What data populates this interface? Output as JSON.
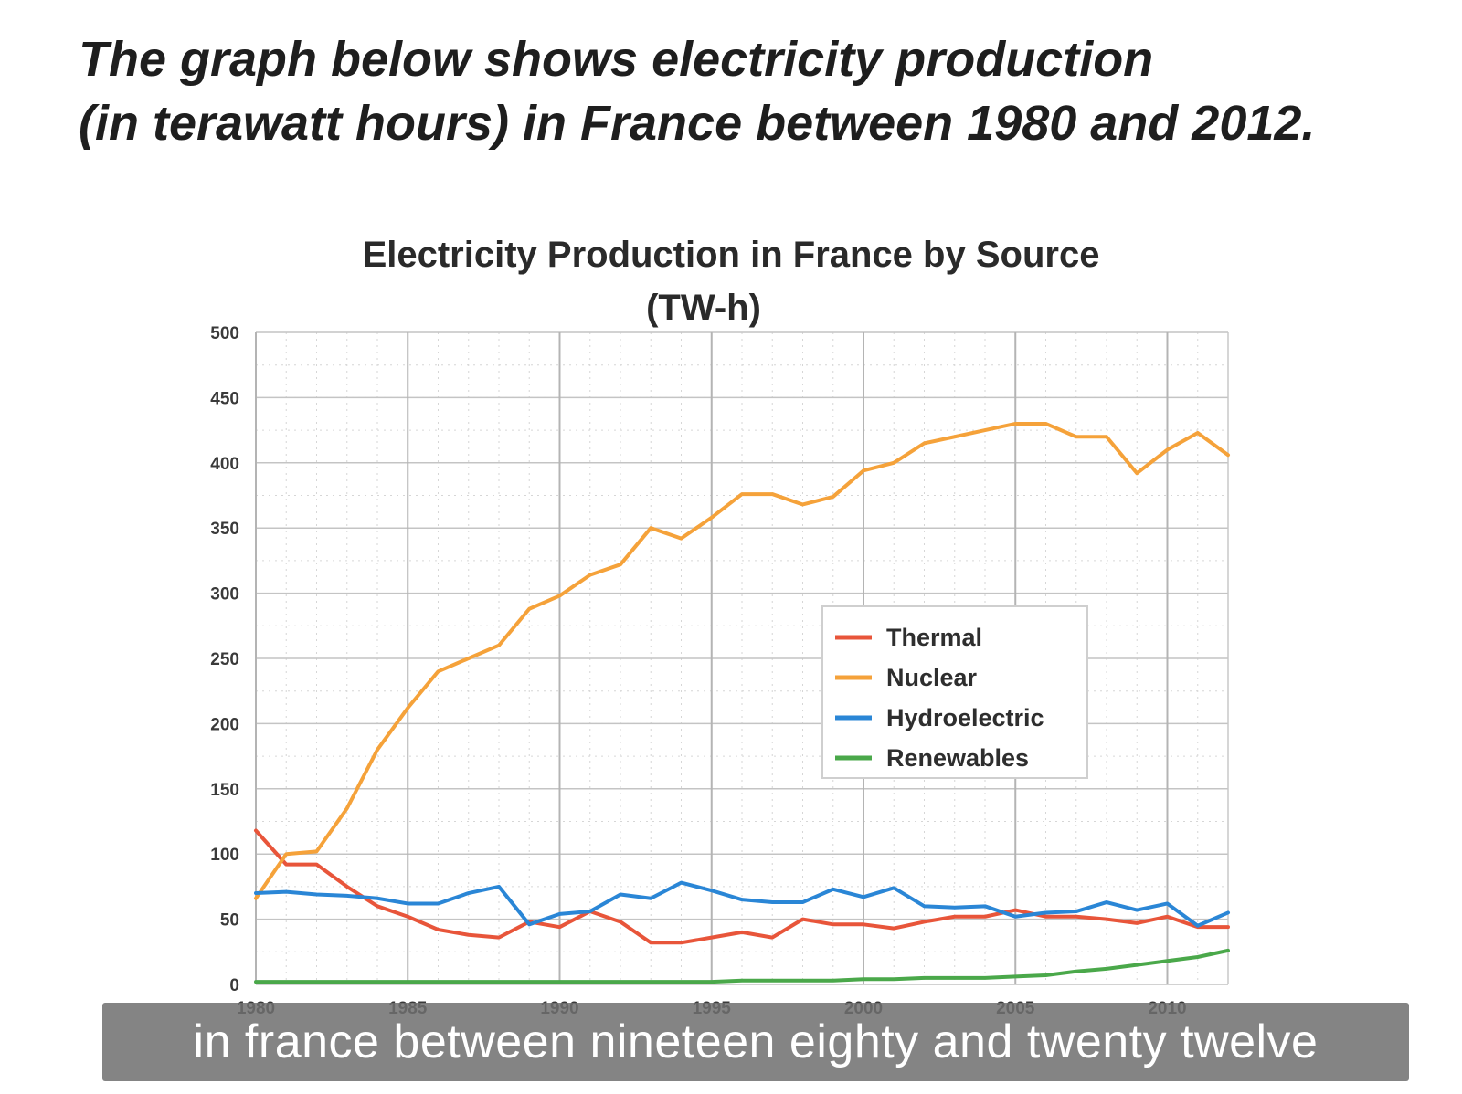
{
  "headline": {
    "line1": "The graph below shows electricity production",
    "line2": "(in terawatt hours) in France between 1980 and 2012."
  },
  "caption": "in france between nineteen eighty and twenty twelve",
  "chart_data": {
    "type": "line",
    "title": "Electricity Production in France by Source",
    "subtitle": "(TW-h)",
    "xlabel": "",
    "ylabel": "",
    "xlim": [
      1980,
      2012
    ],
    "ylim": [
      0,
      500
    ],
    "y_ticks": [
      0,
      50,
      100,
      150,
      200,
      250,
      300,
      350,
      400,
      450,
      500
    ],
    "x_ticks": [
      1980,
      1985,
      1990,
      1995,
      2000,
      2005,
      2010
    ],
    "grid": true,
    "legend_position": "center-right",
    "x": [
      1980,
      1981,
      1982,
      1983,
      1984,
      1985,
      1986,
      1987,
      1988,
      1989,
      1990,
      1991,
      1992,
      1993,
      1994,
      1995,
      1996,
      1997,
      1998,
      1999,
      2000,
      2001,
      2002,
      2003,
      2004,
      2005,
      2006,
      2007,
      2008,
      2009,
      2010,
      2011,
      2012
    ],
    "series": [
      {
        "name": "Thermal",
        "color": "#e8553a",
        "values": [
          118,
          92,
          92,
          75,
          60,
          52,
          42,
          38,
          36,
          48,
          44,
          56,
          48,
          32,
          32,
          36,
          40,
          36,
          50,
          46,
          46,
          43,
          48,
          52,
          52,
          57,
          52,
          52,
          50,
          47,
          52,
          44,
          44
        ]
      },
      {
        "name": "Nuclear",
        "color": "#f5a23a",
        "values": [
          66,
          100,
          102,
          135,
          180,
          212,
          240,
          250,
          260,
          288,
          298,
          314,
          322,
          350,
          342,
          358,
          376,
          376,
          368,
          374,
          394,
          400,
          415,
          420,
          425,
          430,
          430,
          420,
          420,
          392,
          410,
          423,
          406
        ]
      },
      {
        "name": "Hydroelectric",
        "color": "#2a86d6",
        "values": [
          70,
          71,
          69,
          68,
          66,
          62,
          62,
          70,
          75,
          46,
          54,
          56,
          69,
          66,
          78,
          72,
          65,
          63,
          63,
          73,
          67,
          74,
          60,
          59,
          60,
          52,
          55,
          56,
          63,
          57,
          62,
          45,
          55
        ]
      },
      {
        "name": "Renewables",
        "color": "#4aa84a",
        "values": [
          2,
          2,
          2,
          2,
          2,
          2,
          2,
          2,
          2,
          2,
          2,
          2,
          2,
          2,
          2,
          2,
          3,
          3,
          3,
          3,
          4,
          4,
          5,
          5,
          5,
          6,
          7,
          10,
          12,
          15,
          18,
          21,
          26
        ]
      }
    ]
  }
}
